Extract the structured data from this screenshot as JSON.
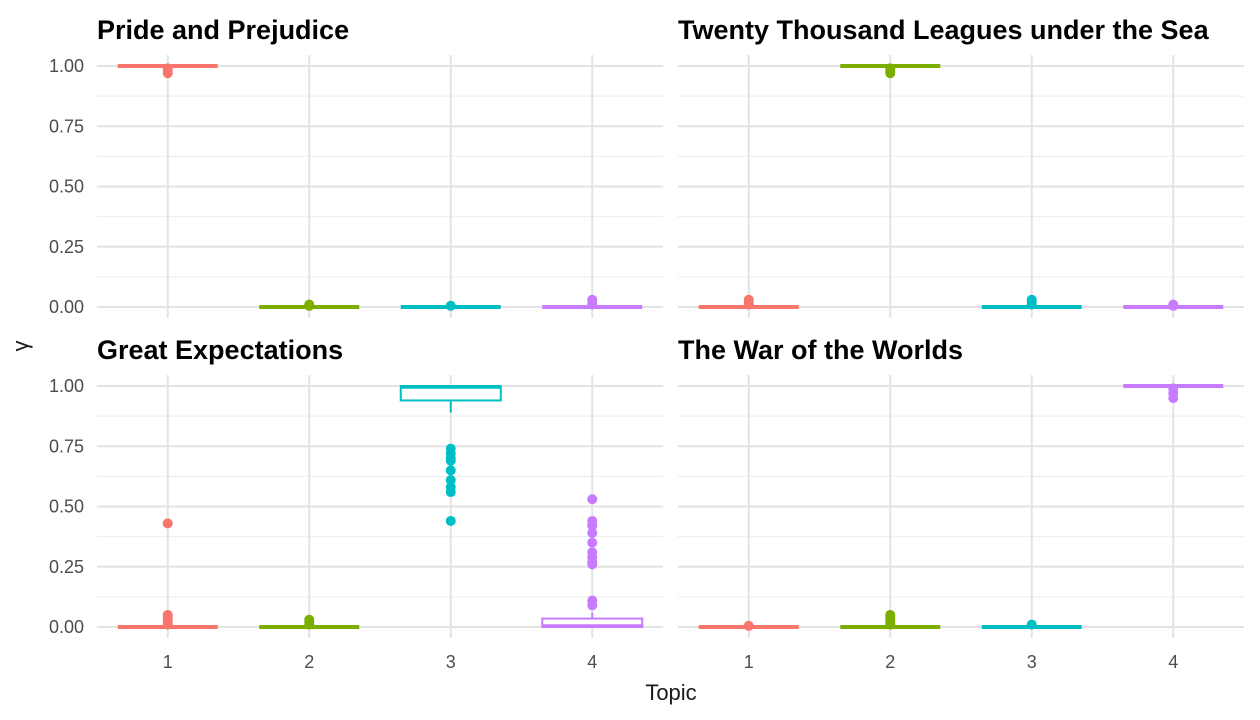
{
  "chart_data": {
    "type": "boxplot",
    "xlabel": "Topic",
    "ylabel": "γ",
    "categories": [
      "1",
      "2",
      "3",
      "4"
    ],
    "y_ticks": [
      "0.00",
      "0.25",
      "0.50",
      "0.75",
      "1.00"
    ],
    "ylim": [
      0,
      1
    ],
    "colors": {
      "1": "#F8766D",
      "2": "#7CAE00",
      "3": "#00BFC4",
      "4": "#C77CFF"
    },
    "grid": true,
    "legend": "none",
    "panels": [
      {
        "title": "Pride and Prejudice",
        "boxes": [
          {
            "topic": "1",
            "lower": 1.0,
            "q1": 1.0,
            "median": 1.0,
            "q3": 1.0,
            "upper": 1.0,
            "outliers": [
              0.97,
              0.98,
              0.99
            ]
          },
          {
            "topic": "2",
            "lower": 0.0,
            "q1": 0.0,
            "median": 0.0,
            "q3": 0.0,
            "upper": 0.0,
            "outliers": [
              0.005,
              0.01
            ]
          },
          {
            "topic": "3",
            "lower": 0.0,
            "q1": 0.0,
            "median": 0.0,
            "q3": 0.0,
            "upper": 0.0,
            "outliers": [
              0.005
            ]
          },
          {
            "topic": "4",
            "lower": 0.0,
            "q1": 0.0,
            "median": 0.0,
            "q3": 0.0,
            "upper": 0.0,
            "outliers": [
              0.01,
              0.02,
              0.03
            ]
          }
        ]
      },
      {
        "title": "Twenty Thousand Leagues under the Sea",
        "boxes": [
          {
            "topic": "1",
            "lower": 0.0,
            "q1": 0.0,
            "median": 0.0,
            "q3": 0.0,
            "upper": 0.0,
            "outliers": [
              0.01,
              0.02,
              0.03
            ]
          },
          {
            "topic": "2",
            "lower": 1.0,
            "q1": 1.0,
            "median": 1.0,
            "q3": 1.0,
            "upper": 1.0,
            "outliers": [
              0.97,
              0.98,
              0.99
            ]
          },
          {
            "topic": "3",
            "lower": 0.0,
            "q1": 0.0,
            "median": 0.0,
            "q3": 0.0,
            "upper": 0.0,
            "outliers": [
              0.01,
              0.02,
              0.03
            ]
          },
          {
            "topic": "4",
            "lower": 0.0,
            "q1": 0.0,
            "median": 0.0,
            "q3": 0.0,
            "upper": 0.0,
            "outliers": [
              0.005,
              0.01
            ]
          }
        ]
      },
      {
        "title": "Great Expectations",
        "boxes": [
          {
            "topic": "1",
            "lower": 0.0,
            "q1": 0.0,
            "median": 0.0,
            "q3": 0.0,
            "upper": 0.0,
            "outliers": [
              0.43,
              0.05,
              0.04,
              0.03,
              0.02,
              0.01
            ]
          },
          {
            "topic": "2",
            "lower": 0.0,
            "q1": 0.0,
            "median": 0.0,
            "q3": 0.0,
            "upper": 0.0,
            "outliers": [
              0.03,
              0.02,
              0.01
            ]
          },
          {
            "topic": "3",
            "lower": 0.89,
            "q1": 0.94,
            "median": 0.995,
            "q3": 1.0,
            "upper": 1.0,
            "outliers": [
              0.74,
              0.72,
              0.7,
              0.69,
              0.65,
              0.61,
              0.58,
              0.56,
              0.44
            ]
          },
          {
            "topic": "4",
            "lower": 0.0,
            "q1": 0.0,
            "median": 0.005,
            "q3": 0.035,
            "upper": 0.06,
            "outliers": [
              0.53,
              0.44,
              0.42,
              0.39,
              0.35,
              0.31,
              0.29,
              0.27,
              0.26,
              0.11,
              0.09
            ]
          }
        ]
      },
      {
        "title": "The War of the Worlds",
        "boxes": [
          {
            "topic": "1",
            "lower": 0.0,
            "q1": 0.0,
            "median": 0.0,
            "q3": 0.0,
            "upper": 0.0,
            "outliers": [
              0.005
            ]
          },
          {
            "topic": "2",
            "lower": 0.0,
            "q1": 0.0,
            "median": 0.0,
            "q3": 0.0,
            "upper": 0.0,
            "outliers": [
              0.05,
              0.04,
              0.03,
              0.02,
              0.01
            ]
          },
          {
            "topic": "3",
            "lower": 0.0,
            "q1": 0.0,
            "median": 0.0,
            "q3": 0.0,
            "upper": 0.0,
            "outliers": [
              0.01
            ]
          },
          {
            "topic": "4",
            "lower": 1.0,
            "q1": 1.0,
            "median": 1.0,
            "q3": 1.0,
            "upper": 1.0,
            "outliers": [
              0.99,
              0.97,
              0.95
            ]
          }
        ]
      }
    ]
  }
}
